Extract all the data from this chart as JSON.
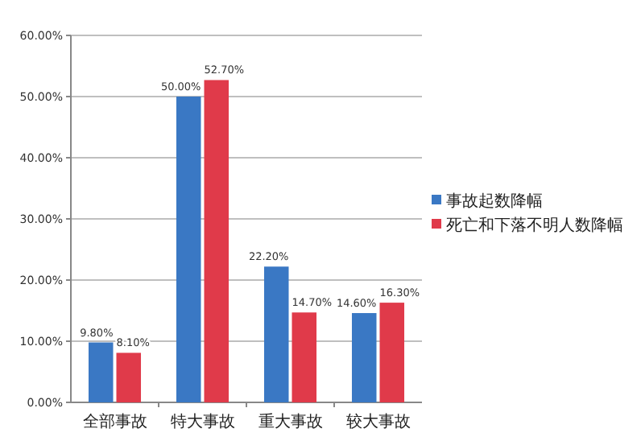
{
  "chart_data": {
    "type": "bar",
    "categories": [
      "全部事故",
      "特大事故",
      "重大事故",
      "较大事故"
    ],
    "series": [
      {
        "name": "事故起数降幅",
        "color": "#3a78c4",
        "values": [
          9.8,
          50.0,
          22.2,
          14.6
        ],
        "value_labels": [
          "9.80%",
          "50.00%",
          "22.20%",
          "14.60%"
        ]
      },
      {
        "name": "死亡和下落不明人数降幅",
        "color": "#e03a4a",
        "values": [
          8.1,
          52.7,
          14.7,
          16.3
        ],
        "value_labels": [
          "8.10%",
          "52.70%",
          "14.70%",
          "16.30%"
        ]
      }
    ],
    "ylim": [
      0,
      60
    ],
    "yticks": [
      {
        "value": 0,
        "label": "0.00%"
      },
      {
        "value": 10,
        "label": "10.00%"
      },
      {
        "value": 20,
        "label": "20.00%"
      },
      {
        "value": 30,
        "label": "30.00%"
      },
      {
        "value": 40,
        "label": "40.00%"
      },
      {
        "value": 50,
        "label": "50.00%"
      },
      {
        "value": 60,
        "label": "60.00%"
      }
    ],
    "grid": "y",
    "legend": "right"
  }
}
